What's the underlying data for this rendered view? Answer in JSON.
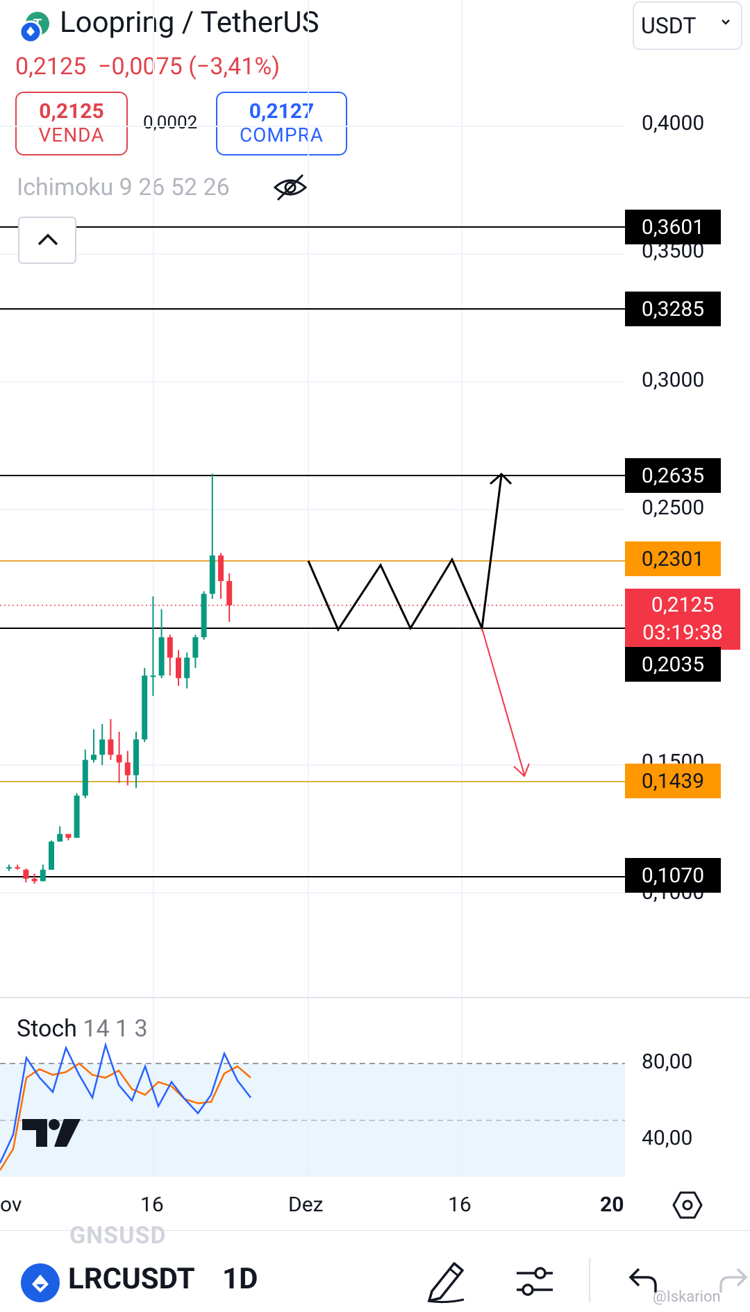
{
  "header": {
    "title": "Loopring / TetherUS",
    "last_price": "0,2125",
    "change": "−0,0075",
    "change_pct": "(−3,41%)",
    "currency": "USDT",
    "sell_price": "0,2125",
    "sell_label": "VENDA",
    "spread": "0,0002",
    "buy_price": "0,2127",
    "buy_label": "COMPRA"
  },
  "indicator": {
    "ichimoku": "Ichimoku 9 26 52 26"
  },
  "price_axis": {
    "labels": [
      "0,4000",
      "0,3500",
      "0,3000",
      "0,2500",
      "0,1500",
      "0,1000"
    ]
  },
  "levels": {
    "l3601": "0,3601",
    "l3285": "0,3285",
    "l2635": "0,2635",
    "l2301": "0,2301",
    "current_price": "0,2125",
    "countdown": "03:19:38",
    "l2035": "0,2035",
    "l1439": "0,1439",
    "l1070": "0,1070"
  },
  "stoch": {
    "name": "Stoch",
    "params": "14 1 3",
    "axis": [
      "80,00",
      "40,00"
    ]
  },
  "time_axis": [
    "ov",
    "16",
    "Dez",
    "16",
    "20"
  ],
  "bottom": {
    "symbol": "LRCUSDT",
    "interval": "1D",
    "ghost_symbol": "GNSUSD",
    "watermark": "@Iskarion"
  },
  "colors": {
    "up": "#089981",
    "down": "#f23645",
    "orange": "#ff9800",
    "blue": "#2962ff"
  },
  "chart_data": {
    "type": "candlestick",
    "candles": [
      {
        "o": 0.1095,
        "h": 0.111,
        "l": 0.1085,
        "c": 0.11
      },
      {
        "o": 0.11,
        "h": 0.111,
        "l": 0.109,
        "c": 0.1095
      },
      {
        "o": 0.109,
        "h": 0.1095,
        "l": 0.104,
        "c": 0.1055
      },
      {
        "o": 0.1055,
        "h": 0.1075,
        "l": 0.1035,
        "c": 0.1045
      },
      {
        "o": 0.1045,
        "h": 0.111,
        "l": 0.1045,
        "c": 0.109
      },
      {
        "o": 0.109,
        "h": 0.1205,
        "l": 0.109,
        "c": 0.12
      },
      {
        "o": 0.12,
        "h": 0.126,
        "l": 0.12,
        "c": 0.123
      },
      {
        "o": 0.123,
        "h": 0.1225,
        "l": 0.1205,
        "c": 0.1215
      },
      {
        "o": 0.1215,
        "h": 0.139,
        "l": 0.1215,
        "c": 0.138
      },
      {
        "o": 0.138,
        "h": 0.156,
        "l": 0.137,
        "c": 0.152
      },
      {
        "o": 0.152,
        "h": 0.164,
        "l": 0.151,
        "c": 0.154
      },
      {
        "o": 0.154,
        "h": 0.166,
        "l": 0.15,
        "c": 0.16
      },
      {
        "o": 0.16,
        "h": 0.168,
        "l": 0.152,
        "c": 0.154
      },
      {
        "o": 0.154,
        "h": 0.163,
        "l": 0.143,
        "c": 0.151
      },
      {
        "o": 0.151,
        "h": 0.1555,
        "l": 0.142,
        "c": 0.146
      },
      {
        "o": 0.146,
        "h": 0.163,
        "l": 0.141,
        "c": 0.16
      },
      {
        "o": 0.16,
        "h": 0.188,
        "l": 0.159,
        "c": 0.185
      },
      {
        "o": 0.185,
        "h": 0.216,
        "l": 0.177,
        "c": 0.185
      },
      {
        "o": 0.185,
        "h": 0.211,
        "l": 0.184,
        "c": 0.2
      },
      {
        "o": 0.2,
        "h": 0.201,
        "l": 0.185,
        "c": 0.192
      },
      {
        "o": 0.192,
        "h": 0.195,
        "l": 0.181,
        "c": 0.184
      },
      {
        "o": 0.184,
        "h": 0.194,
        "l": 0.18,
        "c": 0.192
      },
      {
        "o": 0.192,
        "h": 0.201,
        "l": 0.188,
        "c": 0.2
      },
      {
        "o": 0.2,
        "h": 0.218,
        "l": 0.199,
        "c": 0.217
      },
      {
        "o": 0.217,
        "h": 0.264,
        "l": 0.215,
        "c": 0.232
      },
      {
        "o": 0.232,
        "h": 0.233,
        "l": 0.215,
        "c": 0.222
      },
      {
        "o": 0.222,
        "h": 0.225,
        "l": 0.206,
        "c": 0.2125
      }
    ],
    "stoch_k": [
      10,
      30,
      84,
      70,
      60,
      91,
      72,
      56,
      93,
      65,
      54,
      78,
      50,
      67,
      55,
      45,
      58,
      87,
      68,
      56
    ],
    "stoch_d": [
      5,
      20,
      70,
      76,
      72,
      74,
      80,
      72,
      70,
      75,
      62,
      58,
      67,
      64,
      55,
      52,
      53,
      73,
      78,
      70
    ],
    "y_range": [
      0.08,
      0.42
    ],
    "stoch_range": [
      20,
      100
    ]
  }
}
